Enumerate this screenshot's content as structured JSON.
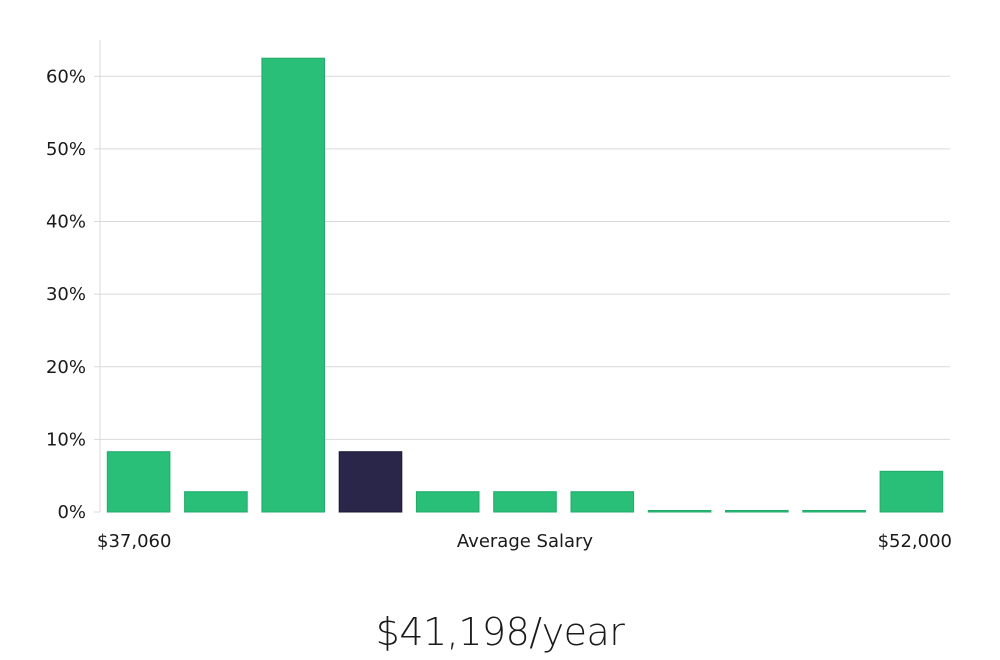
{
  "colors": {
    "bar": "#2abf78",
    "bar_stroke": "#23ab6a",
    "highlight": "#29264a",
    "highlight_stroke": "#1c1a36",
    "grid": "#d9d9d9",
    "text": "#1a1a1a"
  },
  "chart_data": {
    "type": "bar",
    "values": [
      8.3,
      2.8,
      62.5,
      8.3,
      2.8,
      2.8,
      2.8,
      0.2,
      0.2,
      0.2,
      5.6
    ],
    "highlight_index": 3,
    "ylim": [
      0,
      65
    ],
    "y_ticks": [
      {
        "value": 0,
        "label": "0%"
      },
      {
        "value": 10,
        "label": "10%"
      },
      {
        "value": 20,
        "label": "20%"
      },
      {
        "value": 30,
        "label": "30%"
      },
      {
        "value": 40,
        "label": "40%"
      },
      {
        "value": 50,
        "label": "50%"
      },
      {
        "value": 60,
        "label": "60%"
      }
    ],
    "x_min_label": "$37,060",
    "x_max_label": "$52,000",
    "xlabel": "Average Salary",
    "grid": true
  },
  "summary": {
    "salary": "$41,198/year"
  }
}
